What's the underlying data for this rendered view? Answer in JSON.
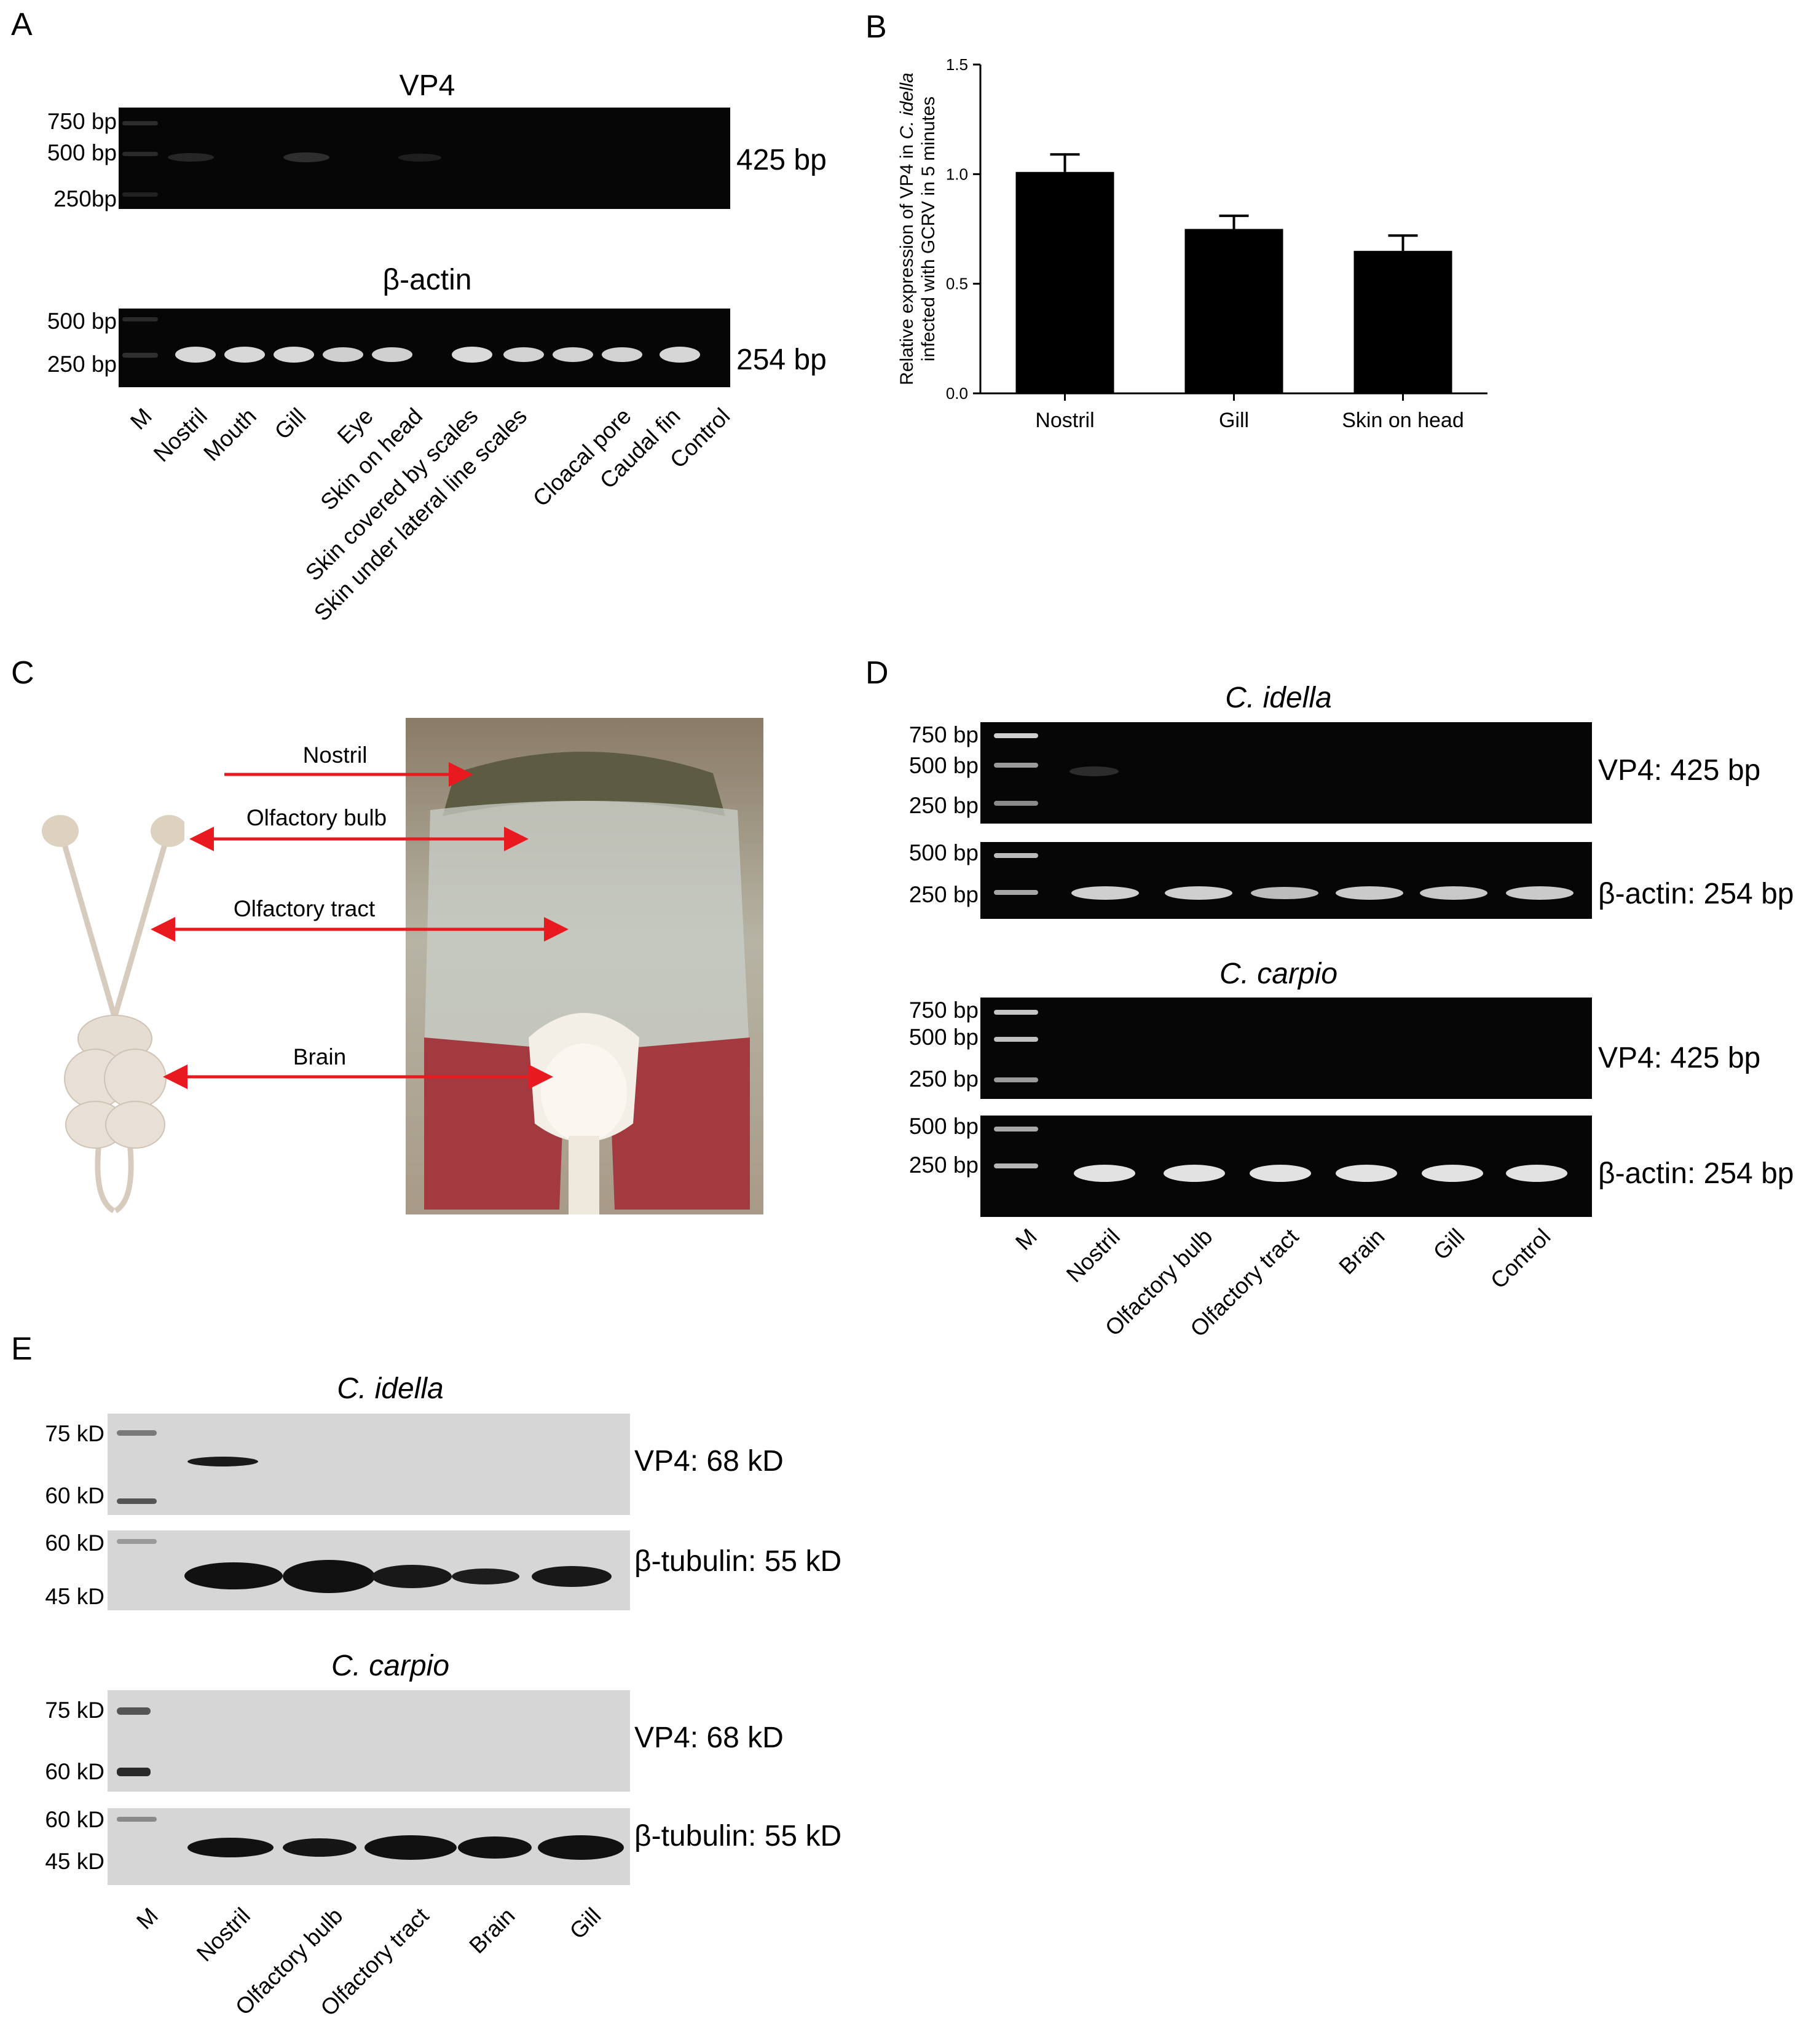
{
  "panels": {
    "a": "A",
    "b": "B",
    "c": "C",
    "d": "D",
    "e": "E"
  },
  "panel_a": {
    "vp4_title": "VP4",
    "actin_title": "β-actin",
    "vp4_markers": [
      "750 bp",
      "500 bp",
      "250bp"
    ],
    "actin_markers": [
      "500 bp",
      "250 bp"
    ],
    "vp4_size": "425 bp",
    "actin_size": "254 bp",
    "lanes": [
      "M",
      "Nostril",
      "Mouth",
      "Gill",
      "Eye",
      "Skin on head",
      "Skin covered by scales",
      "Skin under lateral line scales",
      "Cloacal pore",
      "Caudal fin",
      "Control"
    ]
  },
  "chart_data": {
    "type": "bar",
    "categories": [
      "Nostril",
      "Gill",
      "Skin on head"
    ],
    "values": [
      1.01,
      0.75,
      0.65
    ],
    "errors": [
      0.08,
      0.06,
      0.07
    ],
    "ylabel_line1_pre": "Relative expression of VP4 in ",
    "ylabel_line1_italic": "C. idella",
    "ylabel_line2": "infected with GCRV in 5 minutes",
    "ylim": [
      0,
      1.5
    ],
    "yticks": [
      "0.0",
      "0.5",
      "1.0",
      "1.5"
    ],
    "bar_color": "#000000"
  },
  "panel_c": {
    "labels": [
      "Nostril",
      "Olfactory bulb",
      "Olfactory tract",
      "Brain"
    ],
    "arrow_color": "#e8191f"
  },
  "panel_d": {
    "species1": "C. idella",
    "species2": "C. carpio",
    "vp4_markers": [
      "750 bp",
      "500 bp",
      "250 bp"
    ],
    "actin_markers": [
      "500 bp",
      "250 bp"
    ],
    "vp4_size": "VP4: 425 bp",
    "actin_size": "β-actin: 254 bp",
    "lanes": [
      "M",
      "Nostril",
      "Olfactory bulb",
      "Olfactory tract",
      "Brain",
      "Gill",
      "Control"
    ]
  },
  "panel_e": {
    "species1": "C. idella",
    "species2": "C. carpio",
    "vp4_markers": [
      "75 kD",
      "60 kD"
    ],
    "tub_markers": [
      "60 kD",
      "45 kD"
    ],
    "vp4_size": "VP4: 68 kD",
    "tub_size": "β-tubulin: 55 kD",
    "lanes": [
      "M",
      "Nostril",
      "Olfactory bulb",
      "Olfactory tract",
      "Brain",
      "Gill"
    ]
  }
}
